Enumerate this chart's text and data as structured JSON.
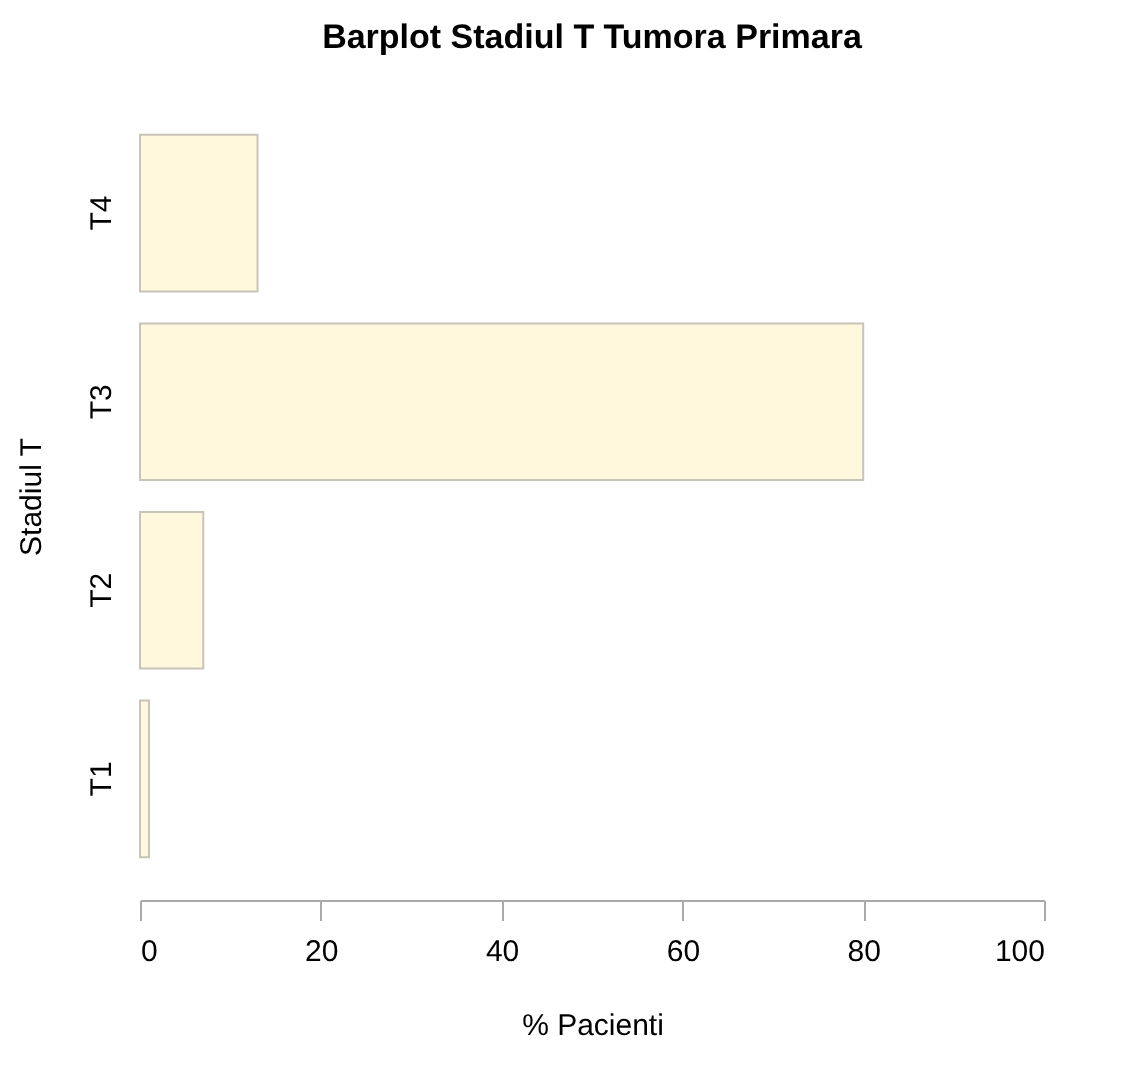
{
  "chart_data": {
    "type": "bar",
    "orientation": "horizontal",
    "title": "Barplot Stadiul T Tumora Primara",
    "xlabel": "% Pacienti",
    "ylabel": "Stadiul T",
    "categories": [
      "T4",
      "T3",
      "T2",
      "T1"
    ],
    "values": [
      13,
      80,
      7,
      1
    ],
    "color": "#fff8dc",
    "xlim": [
      0,
      100
    ],
    "xticks": [
      0,
      20,
      40,
      60,
      80,
      100
    ],
    "grid": false
  }
}
